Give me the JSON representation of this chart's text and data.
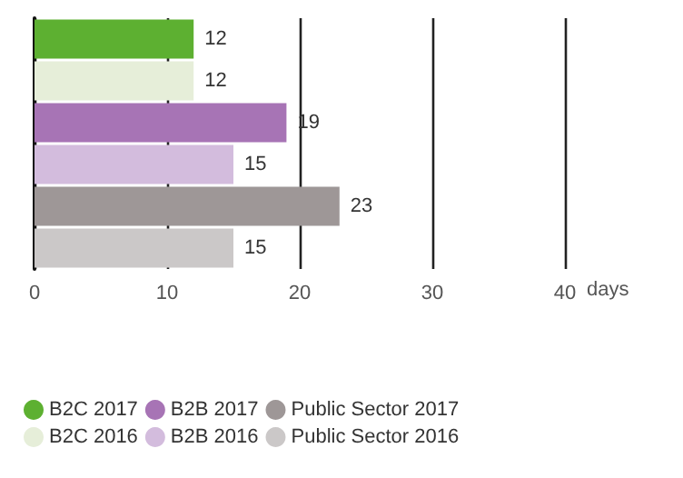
{
  "chart_data": {
    "type": "bar",
    "orientation": "horizontal",
    "categories": [
      null,
      null,
      null,
      null,
      null,
      null
    ],
    "series": [
      {
        "name": "B2C 2017",
        "color": "#5db031",
        "values": [
          12,
          null,
          null,
          null,
          null,
          null
        ]
      },
      {
        "name": "B2C 2016",
        "color": "#e6eed9",
        "values": [
          null,
          12,
          null,
          null,
          null,
          null
        ]
      },
      {
        "name": "B2B 2017",
        "color": "#a774b5",
        "values": [
          null,
          null,
          19,
          null,
          null,
          null
        ]
      },
      {
        "name": "B2B 2016",
        "color": "#d3bcdd",
        "values": [
          null,
          null,
          null,
          15,
          null,
          null
        ]
      },
      {
        "name": "Public Sector 2017",
        "color": "#9e9797",
        "values": [
          null,
          null,
          null,
          null,
          23,
          null
        ]
      },
      {
        "name": "Public Sector 2016",
        "color": "#cbc8c8",
        "values": [
          null,
          null,
          null,
          null,
          null,
          15
        ]
      }
    ],
    "xlabel": "days",
    "xlim": [
      0,
      40
    ],
    "xticks": [
      0,
      10,
      20,
      30,
      40
    ],
    "grid": "x",
    "legend": "bottom",
    "data_labels": true
  }
}
